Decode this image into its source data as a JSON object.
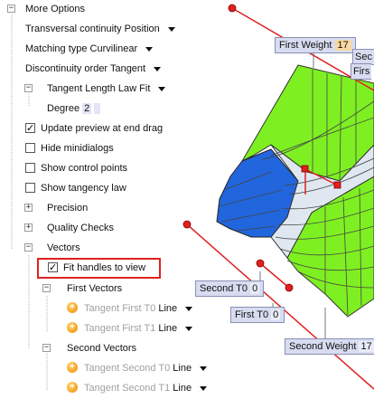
{
  "tree": {
    "more_options": "More Options",
    "transversal": "Transversal continuity",
    "transversal_value": "Position",
    "matching_type": "Matching type",
    "matching_value": "Curvilinear",
    "disc_order": "Discontinuity order",
    "disc_value": "Tangent",
    "tll": "Tangent Length Law",
    "tll_value": "Fit",
    "degree_label": "Degree",
    "degree_value": "2",
    "update_preview": "Update preview at end drag",
    "hide_minidialogs": "Hide minidialogs",
    "show_control_points": "Show control points",
    "show_tangency_law": "Show tangency law",
    "precision": "Precision",
    "quality_checks": "Quality Checks",
    "vectors": "Vectors",
    "fit_handles": "Fit handles to view",
    "first_vectors": "First Vectors",
    "tangent_first_t0": "Tangent First T0",
    "tangent_first_t1": "Tangent First T1",
    "line": "Line",
    "second_vectors": "Second Vectors",
    "tangent_second_t0": "Tangent Second T0",
    "tangent_second_t1": "Tangent Second T1"
  },
  "checkboxes": {
    "update_preview": true,
    "hide_minidialogs": false,
    "show_control_points": false,
    "show_tangency_law": false,
    "fit_handles": true
  },
  "viewport": {
    "first_weight_label": "First Weight",
    "first_weight_value": "17",
    "second_weight_label": "Second Weight",
    "second_weight_value": "17",
    "second_t0_label": "Second T0",
    "second_t0_value": "0",
    "first_t0_label": "First T0",
    "first_t0_value": "0",
    "clip_label_1": "Sec",
    "clip_label_2": "Firs"
  },
  "colors": {
    "surface_green": "#7ef022",
    "surface_blue": "#2266dd",
    "surface_light": "#dfe8f0",
    "handle_red": "#e02020",
    "highlight": "#e02020"
  }
}
